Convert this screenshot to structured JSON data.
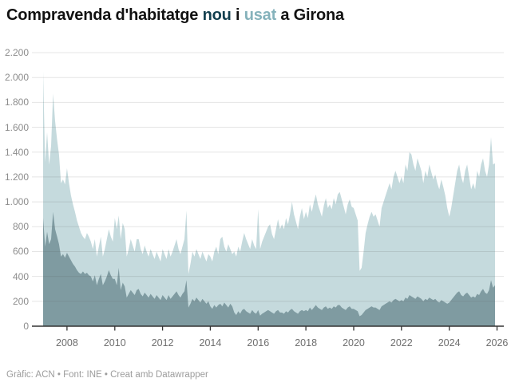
{
  "title": {
    "segments": [
      {
        "text": "Compravenda d'habitatge ",
        "color": "#121212"
      },
      {
        "text": "nou",
        "color": "#123f4f"
      },
      {
        "text": " i ",
        "color": "#121212"
      },
      {
        "text": "usat",
        "color": "#85b2bb"
      },
      {
        "text": " a Girona",
        "color": "#121212"
      }
    ]
  },
  "footer": {
    "text": "Gràfic: ACN • Font: INE • Creat amb Datawrapper"
  },
  "colors": {
    "nou_area": "#7f9ba1",
    "usat_area": "#c5dadd",
    "nou_title": "#123f4f",
    "usat_title": "#85b2bb",
    "gridline": "rgba(85,85,85,0.16)",
    "axis_line": "#333333",
    "y_label": "#8c8c8c",
    "x_label": "#6e6e6e",
    "footer_text": "#9c9c9c"
  },
  "chart_data": {
    "type": "area",
    "stacked": true,
    "title": "Compravenda d'habitatge nou i usat a Girona",
    "xlabel": "",
    "ylabel": "",
    "x_start": "2007-01",
    "x_end": "2025-12",
    "frequency": "monthly",
    "ylim": [
      0,
      2200
    ],
    "grid": true,
    "legend_position": "in-title",
    "y_tick_labels": [
      "0",
      "200",
      "400",
      "600",
      "800",
      "1.000",
      "1.200",
      "1.400",
      "1.600",
      "1.800",
      "2.000",
      "2.200"
    ],
    "y_tick_values": [
      0,
      200,
      400,
      600,
      800,
      1000,
      1200,
      1400,
      1600,
      1800,
      2000,
      2200
    ],
    "x_tick_years": [
      2008,
      2010,
      2012,
      2014,
      2016,
      2018,
      2020,
      2022,
      2024,
      2026
    ],
    "series": [
      {
        "name": "nou",
        "color": "#7f9ba1",
        "values": [
          870,
          640,
          760,
          660,
          700,
          920,
          780,
          720,
          660,
          560,
          580,
          550,
          590,
          560,
          530,
          500,
          480,
          450,
          430,
          420,
          440,
          420,
          430,
          410,
          400,
          360,
          410,
          330,
          380,
          420,
          330,
          360,
          400,
          450,
          410,
          380,
          380,
          330,
          470,
          290,
          350,
          320,
          230,
          260,
          290,
          270,
          250,
          290,
          300,
          260,
          240,
          270,
          250,
          230,
          260,
          240,
          220,
          250,
          230,
          210,
          250,
          230,
          210,
          250,
          220,
          240,
          260,
          280,
          250,
          230,
          260,
          280,
          370,
          150,
          180,
          220,
          200,
          230,
          210,
          190,
          220,
          200,
          180,
          200,
          160,
          140,
          170,
          150,
          170,
          180,
          160,
          190,
          170,
          150,
          180,
          160,
          110,
          90,
          120,
          100,
          130,
          140,
          120,
          110,
          100,
          130,
          110,
          100,
          130,
          85,
          100,
          110,
          120,
          130,
          120,
          110,
          100,
          120,
          130,
          110,
          110,
          100,
          120,
          110,
          130,
          140,
          120,
          110,
          100,
          120,
          130,
          120,
          130,
          120,
          150,
          130,
          150,
          170,
          150,
          140,
          130,
          150,
          160,
          140,
          150,
          140,
          160,
          150,
          170,
          170,
          150,
          140,
          130,
          150,
          160,
          140,
          140,
          130,
          120,
          80,
          90,
          110,
          130,
          140,
          150,
          160,
          150,
          150,
          140,
          130,
          160,
          170,
          180,
          190,
          200,
          190,
          210,
          220,
          210,
          200,
          210,
          200,
          230,
          220,
          250,
          240,
          230,
          220,
          240,
          230,
          220,
          200,
          220,
          210,
          230,
          220,
          210,
          220,
          200,
          190,
          210,
          200,
          190,
          180,
          190,
          210,
          230,
          250,
          270,
          280,
          250,
          240,
          260,
          270,
          250,
          230,
          240,
          230,
          260,
          250,
          280,
          300,
          270,
          260,
          290,
          370,
          310,
          330
        ]
      },
      {
        "name": "usat",
        "color": "#c5dadd",
        "values": [
          1180,
          680,
          800,
          640,
          750,
          950,
          870,
          780,
          720,
          590,
          600,
          590,
          680,
          590,
          520,
          480,
          440,
          400,
          370,
          330,
          280,
          280,
          320,
          310,
          280,
          260,
          290,
          230,
          260,
          300,
          230,
          260,
          300,
          330,
          310,
          300,
          490,
          450,
          420,
          410,
          480,
          460,
          330,
          360,
          410,
          380,
          350,
          410,
          400,
          360,
          340,
          380,
          350,
          330,
          360,
          340,
          320,
          350,
          330,
          310,
          370,
          350,
          330,
          370,
          340,
          360,
          390,
          420,
          370,
          350,
          380,
          420,
          560,
          270,
          320,
          380,
          360,
          390,
          370,
          350,
          380,
          360,
          340,
          380,
          400,
          380,
          430,
          490,
          410,
          520,
          560,
          450,
          430,
          510,
          440,
          420,
          490,
          470,
          520,
          500,
          550,
          610,
          580,
          550,
          520,
          570,
          540,
          520,
          810,
          535,
          580,
          610,
          640,
          670,
          700,
          630,
          600,
          660,
          730,
          670,
          710,
          680,
          750,
          710,
          770,
          860,
          780,
          730,
          680,
          760,
          820,
          740,
          790,
          750,
          830,
          790,
          850,
          890,
          830,
          790,
          750,
          820,
          870,
          810,
          830,
          800,
          870,
          830,
          890,
          910,
          870,
          820,
          770,
          830,
          860,
          820,
          810,
          770,
          730,
          365,
          380,
          490,
          620,
          680,
          730,
          760,
          730,
          750,
          710,
          670,
          790,
          830,
          870,
          910,
          950,
          910,
          990,
          1030,
          990,
          950,
          990,
          950,
          1070,
          1030,
          1150,
          1140,
          1070,
          1030,
          1110,
          1070,
          1030,
          950,
          1030,
          990,
          1070,
          1020,
          970,
          1000,
          950,
          910,
          970,
          920,
          860,
          770,
          690,
          740,
          820,
          900,
          980,
          1020,
          950,
          910,
          990,
          1030,
          950,
          870,
          910,
          870,
          990,
          950,
          1020,
          1050,
          980,
          940,
          1010,
          1150,
          990,
          980
        ]
      }
    ]
  }
}
